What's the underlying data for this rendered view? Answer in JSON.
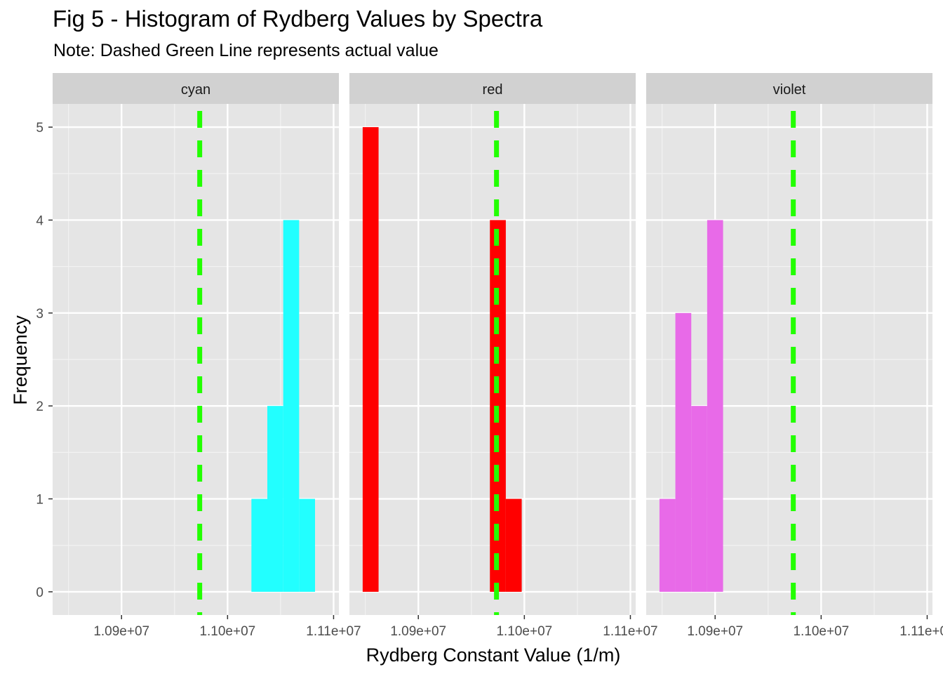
{
  "chart_data": {
    "type": "bar",
    "title": "Fig 5 - Histogram of Rydberg Values by Spectra",
    "subtitle": "Note: Dashed Green Line represents actual value",
    "xlabel": "Rydberg Constant Value (1/m)",
    "ylabel": "Frequency",
    "x_ticks": [
      10900000,
      11000000,
      11100000
    ],
    "x_tick_labels": [
      "1.09e+07",
      "1.10e+07",
      "1.11e+07"
    ],
    "xlim": [
      10835000,
      11105000
    ],
    "y_ticks": [
      0,
      1,
      2,
      3,
      4,
      5
    ],
    "ylim": [
      -0.25,
      5.25
    ],
    "grid": true,
    "reference_line": {
      "x": 10973731,
      "style": "dashed",
      "color": "#22ff00"
    },
    "bin_width": 15000,
    "panels": [
      {
        "name": "cyan",
        "color": "#22ffff",
        "bins": [
          {
            "x": 11030000,
            "count": 1
          },
          {
            "x": 11045000,
            "count": 2
          },
          {
            "x": 11060000,
            "count": 4
          },
          {
            "x": 11075000,
            "count": 1
          }
        ]
      },
      {
        "name": "red",
        "color": "#ff0000",
        "bins": [
          {
            "x": 10855000,
            "count": 5
          },
          {
            "x": 10975000,
            "count": 4
          },
          {
            "x": 10990000,
            "count": 1
          }
        ]
      },
      {
        "name": "violet",
        "color": "#e86ae8",
        "bins": [
          {
            "x": 10855000,
            "count": 1
          },
          {
            "x": 10870000,
            "count": 3
          },
          {
            "x": 10885000,
            "count": 2
          },
          {
            "x": 10900000,
            "count": 4
          }
        ]
      }
    ]
  }
}
